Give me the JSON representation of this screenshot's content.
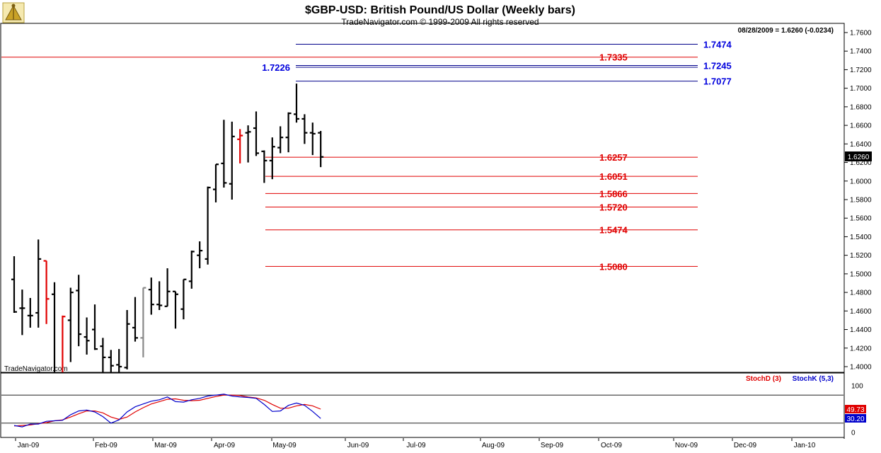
{
  "chart_data": {
    "type": "ohlc",
    "title": "$GBP-USD:  British Pound/US Dollar  (Weekly bars)",
    "subtitle": "TradeNavigator.com © 1999-2009 All rights reserved",
    "info": "08/28/2009 = 1.6260 (-0.0234)",
    "watermark": "TradeNavigator.com",
    "last_price_label": "1.6260",
    "ylim": [
      1.39,
      1.77
    ],
    "yticks": [
      "1.7600",
      "1.7400",
      "1.7200",
      "1.7000",
      "1.6800",
      "1.6600",
      "1.6400",
      "1.6200",
      "1.6000",
      "1.5800",
      "1.5600",
      "1.5400",
      "1.5200",
      "1.5000",
      "1.4800",
      "1.4600",
      "1.4400",
      "1.4200",
      "1.4000"
    ],
    "months": [
      "Jan-09",
      "Feb-09",
      "Mar-09",
      "Apr-09",
      "May-09",
      "Jun-09",
      "Jul-09",
      "Aug-09",
      "Sep-09",
      "Oct-09",
      "Nov-09",
      "Dec-09",
      "Jan-10"
    ],
    "bars": [
      {
        "o": 1.494,
        "h": 1.519,
        "l": 1.458,
        "c": 1.459,
        "color": "#000000"
      },
      {
        "o": 1.463,
        "h": 1.483,
        "l": 1.434,
        "c": 1.463,
        "color": "#000000"
      },
      {
        "o": 1.455,
        "h": 1.474,
        "l": 1.442,
        "c": 1.455,
        "color": "#000000"
      },
      {
        "o": 1.458,
        "h": 1.537,
        "l": 1.442,
        "c": 1.516,
        "color": "#000000"
      },
      {
        "o": 1.514,
        "h": 1.514,
        "l": 1.446,
        "c": 1.473,
        "color": "#e00000"
      },
      {
        "o": 1.478,
        "h": 1.491,
        "l": 1.338,
        "c": 1.35,
        "color": "#000000"
      },
      {
        "o": 1.365,
        "h": 1.455,
        "l": 1.34,
        "c": 1.454,
        "color": "#e00000"
      },
      {
        "o": 1.45,
        "h": 1.485,
        "l": 1.405,
        "c": 1.48,
        "color": "#000000"
      },
      {
        "o": 1.482,
        "h": 1.499,
        "l": 1.422,
        "c": 1.435,
        "color": "#000000"
      },
      {
        "o": 1.432,
        "h": 1.453,
        "l": 1.413,
        "c": 1.428,
        "color": "#000000"
      },
      {
        "o": 1.44,
        "h": 1.467,
        "l": 1.418,
        "c": 1.419,
        "color": "#000000"
      },
      {
        "o": 1.422,
        "h": 1.431,
        "l": 1.394,
        "c": 1.41,
        "color": "#000000"
      },
      {
        "o": 1.41,
        "h": 1.418,
        "l": 1.38,
        "c": 1.401,
        "color": "#000000"
      },
      {
        "o": 1.402,
        "h": 1.419,
        "l": 1.392,
        "c": 1.4,
        "color": "#000000"
      },
      {
        "o": 1.399,
        "h": 1.461,
        "l": 1.397,
        "c": 1.446,
        "color": "#000000"
      },
      {
        "o": 1.442,
        "h": 1.475,
        "l": 1.427,
        "c": 1.431,
        "color": "#000000"
      },
      {
        "o": 1.431,
        "h": 1.485,
        "l": 1.41,
        "c": 1.485,
        "color": "#888888"
      },
      {
        "o": 1.483,
        "h": 1.496,
        "l": 1.456,
        "c": 1.467,
        "color": "#000000"
      },
      {
        "o": 1.467,
        "h": 1.492,
        "l": 1.461,
        "c": 1.466,
        "color": "#000000"
      },
      {
        "o": 1.465,
        "h": 1.506,
        "l": 1.465,
        "c": 1.481,
        "color": "#000000"
      },
      {
        "o": 1.481,
        "h": 1.481,
        "l": 1.441,
        "c": 1.478,
        "color": "#000000"
      },
      {
        "o": 1.462,
        "h": 1.494,
        "l": 1.451,
        "c": 1.494,
        "color": "#000000"
      },
      {
        "o": 1.492,
        "h": 1.525,
        "l": 1.484,
        "c": 1.524,
        "color": "#000000"
      },
      {
        "o": 1.52,
        "h": 1.535,
        "l": 1.506,
        "c": 1.525,
        "color": "#000000"
      },
      {
        "o": 1.516,
        "h": 1.594,
        "l": 1.51,
        "c": 1.593,
        "color": "#000000"
      },
      {
        "o": 1.591,
        "h": 1.618,
        "l": 1.577,
        "c": 1.618,
        "color": "#000000"
      },
      {
        "o": 1.619,
        "h": 1.666,
        "l": 1.593,
        "c": 1.598,
        "color": "#000000"
      },
      {
        "o": 1.597,
        "h": 1.664,
        "l": 1.58,
        "c": 1.648,
        "color": "#000000"
      },
      {
        "o": 1.645,
        "h": 1.656,
        "l": 1.619,
        "c": 1.649,
        "color": "#e00000"
      },
      {
        "o": 1.652,
        "h": 1.66,
        "l": 1.62,
        "c": 1.653,
        "color": "#000000"
      },
      {
        "o": 1.657,
        "h": 1.675,
        "l": 1.627,
        "c": 1.63,
        "color": "#000000"
      },
      {
        "o": 1.632,
        "h": 1.633,
        "l": 1.598,
        "c": 1.622,
        "color": "#000000"
      },
      {
        "o": 1.622,
        "h": 1.647,
        "l": 1.602,
        "c": 1.637,
        "color": "#000000"
      },
      {
        "o": 1.636,
        "h": 1.659,
        "l": 1.63,
        "c": 1.647,
        "color": "#000000"
      },
      {
        "o": 1.647,
        "h": 1.674,
        "l": 1.631,
        "c": 1.673,
        "color": "#000000"
      },
      {
        "o": 1.672,
        "h": 1.705,
        "l": 1.663,
        "c": 1.667,
        "color": "#000000"
      },
      {
        "o": 1.667,
        "h": 1.672,
        "l": 1.64,
        "c": 1.652,
        "color": "#000000"
      },
      {
        "o": 1.652,
        "h": 1.663,
        "l": 1.628,
        "c": 1.651,
        "color": "#000000"
      },
      {
        "o": 1.652,
        "h": 1.654,
        "l": 1.615,
        "c": 1.626,
        "color": "#000000"
      }
    ],
    "levels": [
      {
        "value": 1.7474,
        "label": "1.7474",
        "color": "#0000dd",
        "line": "#00008b",
        "from": "may"
      },
      {
        "value": 1.7335,
        "label": "1.7335",
        "color": "#e00000",
        "line": "#e00000",
        "from": "start"
      },
      {
        "value": 1.7245,
        "label": "1.7245",
        "color": "#0000dd",
        "line": "#00008b",
        "from": "may"
      },
      {
        "value": 1.7226,
        "label": "1.7226",
        "color": "#0000dd",
        "line": "#00008b",
        "from": "may",
        "label_side": "left"
      },
      {
        "value": 1.7077,
        "label": "1.7077",
        "color": "#0000dd",
        "line": "#00008b",
        "from": "may"
      },
      {
        "value": 1.6257,
        "label": "1.6257",
        "color": "#e00000",
        "line": "#e00000",
        "from": "apr"
      },
      {
        "value": 1.6051,
        "label": "1.6051",
        "color": "#e00000",
        "line": "#e00000",
        "from": "apr"
      },
      {
        "value": 1.5866,
        "label": "1.5866",
        "color": "#e00000",
        "line": "#e00000",
        "from": "apr"
      },
      {
        "value": 1.572,
        "label": "1.5720",
        "color": "#e00000",
        "line": "#e00000",
        "from": "apr"
      },
      {
        "value": 1.5474,
        "label": "1.5474",
        "color": "#e00000",
        "line": "#e00000",
        "from": "apr"
      },
      {
        "value": 1.508,
        "label": "1.5080",
        "color": "#e00000",
        "line": "#e00000",
        "from": "apr"
      }
    ],
    "indicator": {
      "ylim": [
        0,
        100
      ],
      "yticks": [
        "100",
        "0"
      ],
      "stochd_label": "StochD (3)",
      "stochk_label": "StochK (5,3)",
      "stochd_value": "49.73",
      "stochk_value": "30.20",
      "stochd_color": "#e00000",
      "stochk_color": "#0000cc",
      "stochk": [
        15,
        12,
        18,
        18,
        24,
        25,
        26,
        38,
        46,
        48,
        44,
        34,
        20,
        27,
        44,
        55,
        61,
        67,
        70,
        76,
        66,
        65,
        70,
        73,
        78,
        80,
        82,
        78,
        76,
        75,
        73,
        60,
        45,
        46,
        58,
        63,
        58,
        45,
        30
      ],
      "stochd": [
        14,
        15,
        16,
        19,
        21,
        25,
        27,
        33,
        40,
        46,
        46,
        42,
        33,
        28,
        33,
        44,
        53,
        61,
        66,
        71,
        72,
        69,
        68,
        69,
        73,
        77,
        80,
        80,
        79,
        76,
        74,
        69,
        60,
        52,
        52,
        57,
        60,
        57,
        50
      ]
    }
  }
}
